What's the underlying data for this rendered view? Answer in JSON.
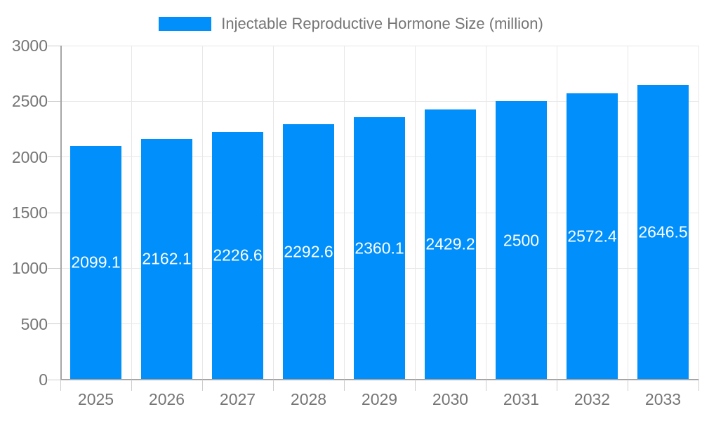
{
  "legend": {
    "label": "Injectable Reproductive Hormone Size (million)"
  },
  "colors": {
    "bar": "#008FFB",
    "grid": "#e7e7e7",
    "axis": "#a6a6a6",
    "tick": "#cccccc",
    "axis_text": "#757575",
    "value_text": "#ffffff"
  },
  "chart_data": {
    "type": "bar",
    "title": "Injectable Reproductive Hormone Size (million)",
    "categories": [
      "2025",
      "2026",
      "2027",
      "2028",
      "2029",
      "2030",
      "2031",
      "2032",
      "2033"
    ],
    "values": [
      2099.1,
      2162.1,
      2226.6,
      2292.6,
      2360.1,
      2429.2,
      2500,
      2572.4,
      2646.5
    ],
    "value_labels": [
      "2099.1",
      "2162.1",
      "2226.6",
      "2292.6",
      "2360.1",
      "2429.2",
      "2500",
      "2572.4",
      "2646.5"
    ],
    "series": [
      {
        "name": "Injectable Reproductive Hormone Size (million)",
        "values": [
          2099.1,
          2162.1,
          2226.6,
          2292.6,
          2360.1,
          2429.2,
          2500,
          2572.4,
          2646.5
        ]
      }
    ],
    "xlabel": "",
    "ylabel": "",
    "ylim": [
      0,
      3000
    ],
    "yticks": [
      0,
      500,
      1000,
      1500,
      2000,
      2500,
      3000
    ],
    "grid": true,
    "legend_position": "top",
    "value_labels_position": "center-inside",
    "value_labels_color": "#ffffff"
  }
}
